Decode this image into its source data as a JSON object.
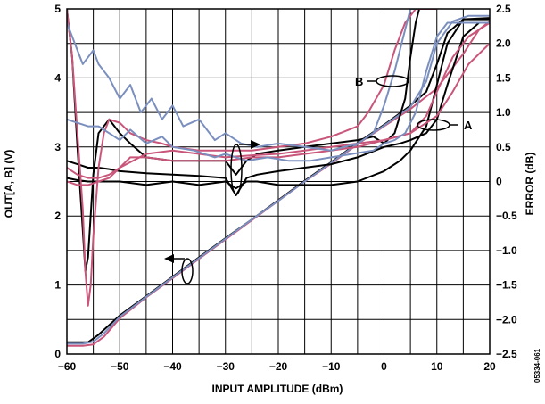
{
  "chart_data": {
    "type": "line",
    "title": "",
    "xlabel": "INPUT AMPLITUDE (dBm)",
    "ylabel_left": "OUT[A, B] (V)",
    "ylabel_right": "ERROR (dB)",
    "figure_id": "05334-061",
    "xlim": [
      -60,
      20
    ],
    "ylim_left": [
      0,
      5
    ],
    "ylim_right": [
      -2.5,
      2.5
    ],
    "x_ticks": [
      -60,
      -50,
      -40,
      -30,
      -20,
      -10,
      0,
      10,
      20
    ],
    "x_tick_labels": [
      "−60",
      "−50",
      "−40",
      "−30",
      "−20",
      "−10",
      "0",
      "10",
      "20"
    ],
    "y_left_ticks": [
      0,
      1,
      2,
      3,
      4,
      5
    ],
    "y_left_tick_labels": [
      "0",
      "1",
      "2",
      "3",
      "4",
      "5"
    ],
    "y_right_ticks": [
      -2.5,
      -2.0,
      -1.5,
      -1.0,
      -0.5,
      0,
      0.5,
      1.0,
      1.5,
      2.0,
      2.5
    ],
    "y_right_tick_labels": [
      "−2.5",
      "−2.0",
      "−1.5",
      "−1.0",
      "−0.5",
      "0",
      "0.5",
      "1.0",
      "1.5",
      "2.0",
      "2.5"
    ],
    "grid": true,
    "colors": {
      "A": "#000000",
      "B": "#c9567a",
      "B_alt": "#7b8fbf"
    },
    "annotations": [
      {
        "text": "A",
        "series": "A"
      },
      {
        "text": "B",
        "series": "B"
      }
    ],
    "series": [
      {
        "axis": "left",
        "color": "#000000",
        "x": [
          -60,
          -58,
          -56,
          -54,
          -52,
          -50,
          -45,
          -40,
          -35,
          -30,
          -25,
          -20,
          -15,
          -10,
          -5,
          0,
          5,
          8,
          10,
          12,
          15,
          20
        ],
        "y": [
          0.17,
          0.17,
          0.17,
          0.28,
          0.42,
          0.56,
          0.84,
          1.12,
          1.4,
          1.68,
          1.95,
          2.23,
          2.51,
          2.78,
          3.06,
          3.32,
          3.6,
          3.8,
          4.2,
          4.65,
          4.85,
          4.87
        ]
      },
      {
        "axis": "left",
        "color": "#c9567a",
        "x": [
          -60,
          -57,
          -55,
          -53,
          -50,
          -45,
          -40,
          -35,
          -30,
          -25,
          -20,
          -15,
          -10,
          -5,
          0,
          5,
          10,
          15,
          18,
          20
        ],
        "y": [
          0.12,
          0.12,
          0.14,
          0.25,
          0.52,
          0.82,
          1.1,
          1.38,
          1.66,
          1.94,
          2.22,
          2.5,
          2.76,
          3.04,
          3.3,
          3.55,
          3.85,
          4.35,
          4.7,
          4.82
        ]
      },
      {
        "axis": "left",
        "color": "#7b8fbf",
        "x": [
          -60,
          -57,
          -55,
          -53,
          -50,
          -45,
          -40,
          -35,
          -30,
          -25,
          -20,
          -15,
          -10,
          -5,
          0,
          5,
          8,
          10,
          13,
          16,
          20
        ],
        "y": [
          0.15,
          0.15,
          0.18,
          0.3,
          0.54,
          0.83,
          1.11,
          1.39,
          1.67,
          1.95,
          2.22,
          2.5,
          2.77,
          3.05,
          3.31,
          3.58,
          3.95,
          4.5,
          4.82,
          4.9,
          4.9
        ]
      },
      {
        "axis": "right",
        "color": "#000000",
        "name": "A",
        "x": [
          -60,
          -59,
          -58,
          -57,
          -56.5,
          -56,
          -55,
          -54,
          -52,
          -50,
          -48,
          -45,
          -40,
          -35,
          -30,
          -28,
          -26,
          -24,
          -20,
          -15,
          -10,
          -5,
          -2,
          0,
          2,
          4,
          5,
          6,
          7,
          7.5
        ],
        "y": [
          2.5,
          1.8,
          0.5,
          -0.7,
          -1.3,
          -1.1,
          0.1,
          0.7,
          0.9,
          0.7,
          0.55,
          0.35,
          0.3,
          0.3,
          0.3,
          0.1,
          0.3,
          0.4,
          0.45,
          0.5,
          0.55,
          0.6,
          0.65,
          0.55,
          0.7,
          1.2,
          1.8,
          2.3,
          2.6,
          2.6
        ]
      },
      {
        "axis": "right",
        "color": "#000000",
        "name": "A",
        "x": [
          -60,
          -58,
          -56,
          -54,
          -52,
          -50,
          -45,
          -40,
          -35,
          -30,
          -28,
          -26,
          -24,
          -20,
          -15,
          -10,
          -5,
          0,
          3,
          5,
          8,
          10,
          12,
          15,
          18,
          20
        ],
        "y": [
          0.05,
          0.02,
          0.0,
          0.0,
          0.0,
          0.0,
          -0.05,
          0.0,
          -0.05,
          0.0,
          -0.1,
          0.0,
          0.0,
          -0.05,
          -0.05,
          -0.05,
          0.0,
          0.15,
          0.3,
          0.45,
          0.8,
          1.4,
          2.0,
          2.35,
          2.35,
          2.35
        ]
      },
      {
        "axis": "right",
        "color": "#000000",
        "name": "A",
        "x": [
          -60,
          -58,
          -56,
          -54,
          -52,
          -50,
          -45,
          -40,
          -35,
          -30,
          -28,
          -26,
          -24,
          -20,
          -15,
          -10,
          -5,
          0,
          3,
          5,
          8,
          10,
          12,
          15,
          18,
          20
        ],
        "y": [
          0.3,
          0.25,
          0.2,
          0.2,
          0.18,
          0.15,
          0.12,
          0.1,
          0.08,
          0.05,
          -0.2,
          0.05,
          0.1,
          0.15,
          0.2,
          0.25,
          0.35,
          0.5,
          0.55,
          0.6,
          0.7,
          0.9,
          1.4,
          2.1,
          2.3,
          2.3
        ]
      },
      {
        "axis": "right",
        "color": "#c9567a",
        "name": "B",
        "x": [
          -60,
          -59,
          -58,
          -57,
          -56.5,
          -56,
          -55.5,
          -55,
          -54,
          -53,
          -52,
          -50,
          -48,
          -45,
          -42,
          -40,
          -35,
          -30,
          -25,
          -20,
          -15,
          -10,
          -5,
          -3,
          0,
          2,
          4,
          6,
          8,
          10
        ],
        "y": [
          2.5,
          1.8,
          0.7,
          -0.4,
          -1.3,
          -1.8,
          -1.5,
          -0.8,
          0.2,
          0.7,
          0.9,
          0.85,
          0.7,
          0.6,
          0.55,
          0.5,
          0.45,
          0.45,
          0.45,
          0.5,
          0.55,
          0.65,
          0.8,
          1.0,
          1.4,
          1.9,
          2.3,
          2.5,
          2.5,
          2.5
        ]
      },
      {
        "axis": "right",
        "color": "#c9567a",
        "name": "B",
        "x": [
          -60,
          -58,
          -56,
          -54,
          -52,
          -50,
          -48,
          -45,
          -40,
          -35,
          -30,
          -25,
          -20,
          -15,
          -10,
          -5,
          0,
          5,
          10,
          13,
          16,
          20
        ],
        "y": [
          0.0,
          -0.05,
          -0.05,
          0.0,
          0.05,
          0.2,
          0.35,
          0.35,
          0.3,
          0.3,
          0.3,
          0.35,
          0.35,
          0.4,
          0.45,
          0.5,
          0.6,
          0.7,
          0.95,
          1.3,
          1.7,
          2.0
        ]
      },
      {
        "axis": "right",
        "color": "#c9567a",
        "name": "B",
        "x": [
          -60,
          -58,
          -56,
          -54,
          -52,
          -50,
          -45,
          -40,
          -35,
          -30,
          -25,
          -20,
          -15,
          -10,
          -5,
          0,
          5,
          8,
          10,
          13,
          16,
          20
        ],
        "y": [
          0.2,
          0.1,
          0.05,
          0.05,
          0.1,
          0.2,
          0.4,
          0.45,
          0.4,
          0.35,
          0.38,
          0.4,
          0.45,
          0.5,
          0.55,
          0.6,
          0.7,
          0.95,
          1.3,
          1.8,
          2.1,
          2.3
        ]
      },
      {
        "axis": "right",
        "color": "#7b8fbf",
        "name": "B",
        "x": [
          -60,
          -58,
          -57,
          -56,
          -55,
          -54,
          -53,
          -52,
          -50,
          -48,
          -46,
          -44,
          -42,
          -40,
          -38,
          -35,
          -32,
          -30,
          -27,
          -24,
          -20,
          -15,
          -10,
          -5,
          -2,
          0,
          2,
          4,
          5,
          6
        ],
        "y": [
          2.3,
          1.9,
          1.7,
          1.8,
          1.9,
          1.7,
          1.6,
          1.5,
          1.2,
          1.4,
          1.0,
          1.2,
          0.9,
          1.1,
          0.8,
          0.9,
          0.6,
          0.7,
          0.55,
          0.5,
          0.55,
          0.5,
          0.45,
          0.55,
          0.7,
          1.1,
          1.6,
          2.2,
          2.5,
          2.5
        ]
      },
      {
        "axis": "right",
        "color": "#7b8fbf",
        "name": "B",
        "x": [
          -60,
          -58,
          -56,
          -54,
          -52,
          -50,
          -48,
          -45,
          -42,
          -40,
          -36,
          -32,
          -30,
          -26,
          -22,
          -18,
          -14,
          -10,
          -6,
          -2,
          0,
          2,
          4,
          6,
          8,
          10,
          12,
          14,
          16,
          20
        ],
        "y": [
          0.9,
          0.85,
          0.8,
          0.8,
          0.7,
          0.6,
          0.75,
          0.55,
          0.65,
          0.5,
          0.45,
          0.35,
          0.4,
          0.3,
          0.35,
          0.3,
          0.3,
          0.35,
          0.4,
          0.45,
          0.55,
          0.6,
          0.7,
          1.0,
          1.6,
          2.1,
          2.3,
          2.3,
          2.3,
          2.3
        ]
      }
    ]
  }
}
